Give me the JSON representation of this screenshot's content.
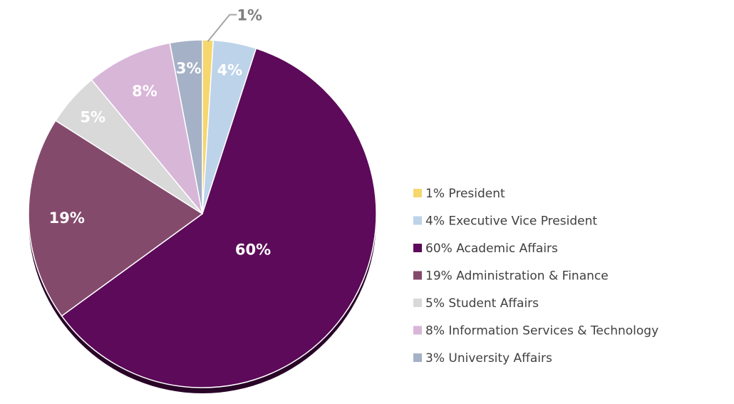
{
  "chart_data": {
    "type": "pie",
    "slices": [
      {
        "key": "president",
        "label": "President",
        "value": 1,
        "label_text": "1%",
        "legend_text": "1% President",
        "color": "#F5D76E",
        "label_color": "#7F7F7F"
      },
      {
        "key": "executive-vice-president",
        "label": "Executive Vice President",
        "value": 4,
        "label_text": "4%",
        "legend_text": "4% Executive Vice President",
        "color": "#BDD3EA",
        "label_color": "#FFFFFF"
      },
      {
        "key": "academic-affairs",
        "label": "Academic Affairs",
        "value": 60,
        "label_text": "60%",
        "legend_text": "60% Academic Affairs",
        "color": "#5C0A59",
        "label_color": "#FFFFFF"
      },
      {
        "key": "administration-finance",
        "label": "Administration & Finance",
        "value": 19,
        "label_text": "19%",
        "legend_text": "19% Administration & Finance",
        "color": "#844A6C",
        "label_color": "#FFFFFF"
      },
      {
        "key": "student-affairs",
        "label": "Student Affairs",
        "value": 5,
        "label_text": "5%",
        "legend_text": "5% Student Affairs",
        "color": "#D9D9D9",
        "label_color": "#FFFFFF"
      },
      {
        "key": "information-services-technology",
        "label": "Information Services & Technology",
        "value": 8,
        "label_text": "8%",
        "legend_text": "8% Information Services & Technology",
        "color": "#D8B6D8",
        "label_color": "#FFFFFF"
      },
      {
        "key": "university-affairs",
        "label": "University Affairs",
        "value": 3,
        "label_text": "3%",
        "legend_text": "3% University Affairs",
        "color": "#A5B1C6",
        "label_color": "#FFFFFF"
      }
    ],
    "legend_position": "right"
  }
}
